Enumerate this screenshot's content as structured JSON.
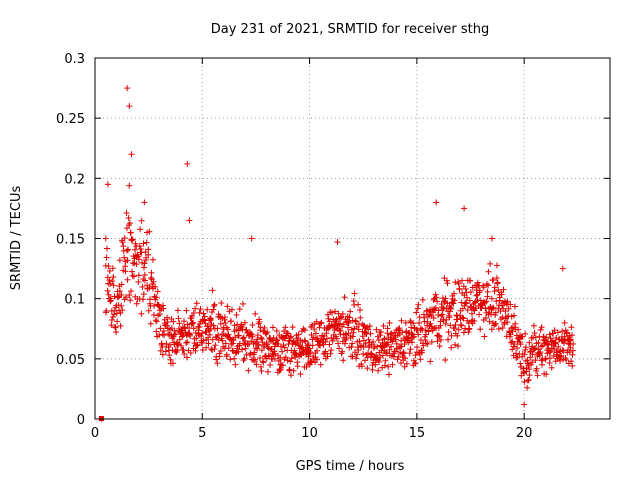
{
  "chart_data": {
    "type": "scatter",
    "title": "Day 231 of 2021, SRMTID for receiver sthg",
    "xlabel": "GPS time / hours",
    "ylabel": "SRMTID / TECUs",
    "xlim": [
      0,
      24
    ],
    "ylim": [
      0,
      0.3
    ],
    "xticks": [
      0,
      5,
      10,
      15,
      20
    ],
    "xtick_labels": [
      "0",
      "5",
      "10",
      "15",
      "20"
    ],
    "yticks": [
      0,
      0.05,
      0.1,
      0.15,
      0.2,
      0.25,
      0.3
    ],
    "ytick_labels": [
      "0",
      "0.05",
      "0.1",
      "0.15",
      "0.2",
      "0.25",
      "0.3"
    ],
    "grid": true,
    "marker": "+",
    "color": "#e00000",
    "x_range_of_data": [
      0.2,
      22.3
    ],
    "sample_points": [
      [
        0.3,
        0.0
      ],
      [
        0.5,
        0.15
      ],
      [
        0.6,
        0.195
      ],
      [
        1.5,
        0.275
      ],
      [
        1.6,
        0.26
      ],
      [
        1.7,
        0.22
      ],
      [
        2.3,
        0.18
      ],
      [
        4.3,
        0.212
      ],
      [
        4.4,
        0.165
      ],
      [
        7.3,
        0.15
      ],
      [
        11.3,
        0.147
      ],
      [
        15.9,
        0.18
      ],
      [
        17.2,
        0.175
      ],
      [
        18.5,
        0.15
      ],
      [
        20.0,
        0.012
      ],
      [
        21.8,
        0.125
      ]
    ],
    "envelope": [
      {
        "x": 0.5,
        "center": 0.115,
        "spread": 0.035
      },
      {
        "x": 1.0,
        "center": 0.09,
        "spread": 0.035
      },
      {
        "x": 1.5,
        "center": 0.14,
        "spread": 0.06
      },
      {
        "x": 2.0,
        "center": 0.13,
        "spread": 0.045
      },
      {
        "x": 2.5,
        "center": 0.12,
        "spread": 0.04
      },
      {
        "x": 3.0,
        "center": 0.08,
        "spread": 0.03
      },
      {
        "x": 3.5,
        "center": 0.065,
        "spread": 0.025
      },
      {
        "x": 4.0,
        "center": 0.07,
        "spread": 0.025
      },
      {
        "x": 5.0,
        "center": 0.075,
        "spread": 0.03
      },
      {
        "x": 6.0,
        "center": 0.07,
        "spread": 0.03
      },
      {
        "x": 7.0,
        "center": 0.065,
        "spread": 0.03
      },
      {
        "x": 8.0,
        "center": 0.06,
        "spread": 0.025
      },
      {
        "x": 9.0,
        "center": 0.06,
        "spread": 0.025
      },
      {
        "x": 10.0,
        "center": 0.055,
        "spread": 0.025
      },
      {
        "x": 11.0,
        "center": 0.075,
        "spread": 0.03
      },
      {
        "x": 12.0,
        "center": 0.075,
        "spread": 0.03
      },
      {
        "x": 13.0,
        "center": 0.055,
        "spread": 0.02
      },
      {
        "x": 14.0,
        "center": 0.06,
        "spread": 0.025
      },
      {
        "x": 15.0,
        "center": 0.065,
        "spread": 0.03
      },
      {
        "x": 16.0,
        "center": 0.085,
        "spread": 0.035
      },
      {
        "x": 17.0,
        "center": 0.09,
        "spread": 0.035
      },
      {
        "x": 18.0,
        "center": 0.1,
        "spread": 0.03
      },
      {
        "x": 19.0,
        "center": 0.095,
        "spread": 0.03
      },
      {
        "x": 20.0,
        "center": 0.05,
        "spread": 0.025
      },
      {
        "x": 21.0,
        "center": 0.06,
        "spread": 0.025
      },
      {
        "x": 22.3,
        "center": 0.06,
        "spread": 0.025
      }
    ]
  }
}
